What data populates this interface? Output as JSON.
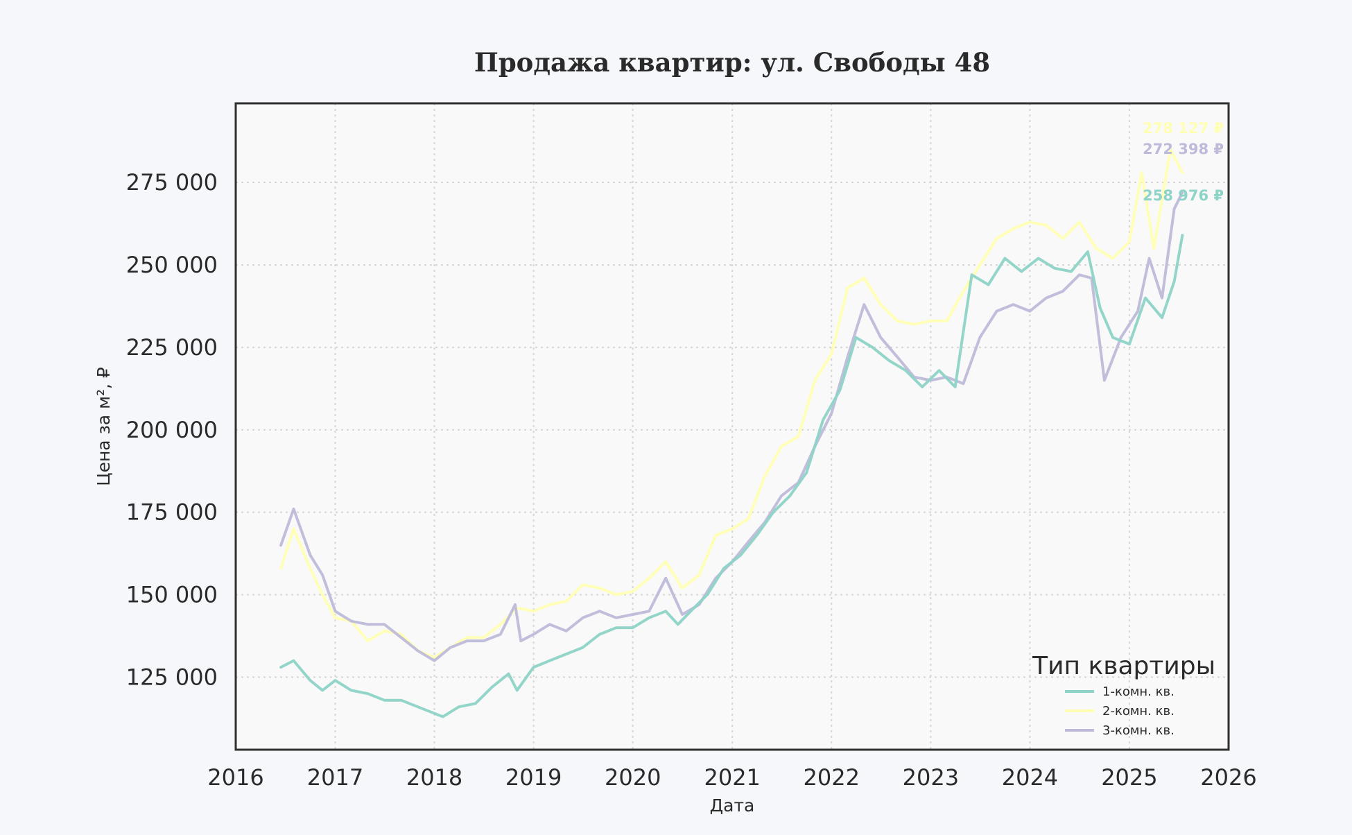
{
  "chart_data": {
    "type": "line",
    "title": "Продажа квартир: ул. Свободы 48",
    "xlabel": "Дата",
    "ylabel": "Цена за м², ₽",
    "xlim": [
      "2016-01-01",
      "2026-01-01"
    ],
    "ylim": [
      103000,
      299000
    ],
    "xticks": [
      "2016",
      "2017",
      "2018",
      "2019",
      "2020",
      "2021",
      "2022",
      "2023",
      "2024",
      "2025",
      "2026"
    ],
    "yticks": [
      {
        "value": 125000,
        "label": "125 000"
      },
      {
        "value": 150000,
        "label": "150 000"
      },
      {
        "value": 175000,
        "label": "175 000"
      },
      {
        "value": 200000,
        "label": "200 000"
      },
      {
        "value": 225000,
        "label": "225 000"
      },
      {
        "value": 250000,
        "label": "250 000"
      },
      {
        "value": 275000,
        "label": "275 000"
      }
    ],
    "grid": true,
    "legend": {
      "title": "Тип квартиры",
      "position": "bottom-right"
    },
    "series": [
      {
        "name": "1-комн. кв.",
        "color": "#8ed3c7",
        "end_label": "258 976 ₽",
        "points": [
          [
            "2016-06-15",
            128000
          ],
          [
            "2016-08-01",
            130000
          ],
          [
            "2016-10-01",
            124000
          ],
          [
            "2016-11-15",
            121000
          ],
          [
            "2017-01-01",
            124000
          ],
          [
            "2017-03-01",
            121000
          ],
          [
            "2017-05-01",
            120000
          ],
          [
            "2017-07-01",
            118000
          ],
          [
            "2017-09-01",
            118000
          ],
          [
            "2017-11-01",
            116000
          ],
          [
            "2018-01-01",
            114000
          ],
          [
            "2018-02-01",
            113000
          ],
          [
            "2018-04-01",
            116000
          ],
          [
            "2018-06-01",
            117000
          ],
          [
            "2018-08-01",
            122000
          ],
          [
            "2018-10-01",
            126000
          ],
          [
            "2018-11-01",
            121000
          ],
          [
            "2019-01-01",
            128000
          ],
          [
            "2019-03-01",
            130000
          ],
          [
            "2019-05-01",
            132000
          ],
          [
            "2019-07-01",
            134000
          ],
          [
            "2019-09-01",
            138000
          ],
          [
            "2019-11-01",
            140000
          ],
          [
            "2020-01-01",
            140000
          ],
          [
            "2020-03-01",
            143000
          ],
          [
            "2020-05-01",
            145000
          ],
          [
            "2020-06-15",
            141000
          ],
          [
            "2020-08-01",
            145000
          ],
          [
            "2020-10-01",
            150000
          ],
          [
            "2020-12-01",
            158000
          ],
          [
            "2021-02-01",
            162000
          ],
          [
            "2021-04-01",
            168000
          ],
          [
            "2021-06-01",
            175000
          ],
          [
            "2021-08-01",
            180000
          ],
          [
            "2021-10-01",
            187000
          ],
          [
            "2021-12-01",
            203000
          ],
          [
            "2022-02-01",
            212000
          ],
          [
            "2022-04-01",
            228000
          ],
          [
            "2022-06-01",
            225000
          ],
          [
            "2022-08-01",
            221000
          ],
          [
            "2022-10-01",
            218000
          ],
          [
            "2022-12-01",
            213000
          ],
          [
            "2023-02-01",
            218000
          ],
          [
            "2023-04-01",
            213000
          ],
          [
            "2023-06-01",
            247000
          ],
          [
            "2023-08-01",
            244000
          ],
          [
            "2023-10-01",
            252000
          ],
          [
            "2023-12-01",
            248000
          ],
          [
            "2024-02-01",
            252000
          ],
          [
            "2024-04-01",
            249000
          ],
          [
            "2024-06-01",
            248000
          ],
          [
            "2024-08-01",
            254000
          ],
          [
            "2024-09-15",
            237000
          ],
          [
            "2024-11-01",
            228000
          ],
          [
            "2025-01-01",
            226000
          ],
          [
            "2025-03-01",
            240000
          ],
          [
            "2025-05-01",
            234000
          ],
          [
            "2025-06-15",
            245000
          ],
          [
            "2025-07-15",
            259000
          ]
        ]
      },
      {
        "name": "2-комн. кв.",
        "color": "#ffffb3",
        "end_label": "278 127 ₽",
        "points": [
          [
            "2016-06-15",
            158000
          ],
          [
            "2016-08-01",
            170000
          ],
          [
            "2016-10-01",
            158000
          ],
          [
            "2016-11-15",
            150000
          ],
          [
            "2017-01-01",
            143000
          ],
          [
            "2017-03-01",
            142000
          ],
          [
            "2017-05-01",
            136000
          ],
          [
            "2017-07-01",
            139000
          ],
          [
            "2017-09-01",
            138000
          ],
          [
            "2017-11-01",
            133000
          ],
          [
            "2018-01-01",
            131000
          ],
          [
            "2018-03-01",
            134000
          ],
          [
            "2018-05-01",
            137000
          ],
          [
            "2018-07-01",
            137000
          ],
          [
            "2018-09-01",
            141000
          ],
          [
            "2018-11-01",
            146000
          ],
          [
            "2019-01-01",
            145000
          ],
          [
            "2019-03-01",
            147000
          ],
          [
            "2019-05-01",
            148000
          ],
          [
            "2019-07-01",
            153000
          ],
          [
            "2019-09-01",
            152000
          ],
          [
            "2019-11-01",
            150000
          ],
          [
            "2020-01-01",
            151000
          ],
          [
            "2020-03-01",
            155000
          ],
          [
            "2020-05-01",
            160000
          ],
          [
            "2020-07-01",
            152000
          ],
          [
            "2020-09-01",
            156000
          ],
          [
            "2020-11-01",
            168000
          ],
          [
            "2021-01-01",
            170000
          ],
          [
            "2021-03-01",
            173000
          ],
          [
            "2021-05-01",
            186000
          ],
          [
            "2021-07-01",
            195000
          ],
          [
            "2021-09-01",
            198000
          ],
          [
            "2021-11-01",
            215000
          ],
          [
            "2022-01-01",
            223000
          ],
          [
            "2022-03-01",
            243000
          ],
          [
            "2022-05-01",
            246000
          ],
          [
            "2022-07-01",
            238000
          ],
          [
            "2022-09-01",
            233000
          ],
          [
            "2022-11-01",
            232000
          ],
          [
            "2023-01-01",
            233000
          ],
          [
            "2023-03-01",
            233000
          ],
          [
            "2023-05-01",
            242000
          ],
          [
            "2023-07-01",
            250000
          ],
          [
            "2023-09-01",
            258000
          ],
          [
            "2023-11-01",
            261000
          ],
          [
            "2024-01-01",
            263000
          ],
          [
            "2024-03-01",
            262000
          ],
          [
            "2024-05-01",
            258000
          ],
          [
            "2024-07-01",
            263000
          ],
          [
            "2024-09-01",
            255000
          ],
          [
            "2024-11-01",
            252000
          ],
          [
            "2025-01-01",
            257000
          ],
          [
            "2025-02-15",
            278000
          ],
          [
            "2025-04-01",
            255000
          ],
          [
            "2025-06-01",
            285000
          ],
          [
            "2025-07-15",
            278000
          ]
        ]
      },
      {
        "name": "3-комн. кв.",
        "color": "#bebada",
        "end_label": "272 398 ₽",
        "points": [
          [
            "2016-06-15",
            165000
          ],
          [
            "2016-08-01",
            176000
          ],
          [
            "2016-10-01",
            162000
          ],
          [
            "2016-11-15",
            156000
          ],
          [
            "2017-01-01",
            145000
          ],
          [
            "2017-03-01",
            142000
          ],
          [
            "2017-05-01",
            141000
          ],
          [
            "2017-07-01",
            141000
          ],
          [
            "2017-09-01",
            137000
          ],
          [
            "2017-11-01",
            133000
          ],
          [
            "2018-01-01",
            130000
          ],
          [
            "2018-03-01",
            134000
          ],
          [
            "2018-05-01",
            136000
          ],
          [
            "2018-07-01",
            136000
          ],
          [
            "2018-09-01",
            138000
          ],
          [
            "2018-10-25",
            147000
          ],
          [
            "2018-11-15",
            136000
          ],
          [
            "2019-01-01",
            138000
          ],
          [
            "2019-03-01",
            141000
          ],
          [
            "2019-05-01",
            139000
          ],
          [
            "2019-07-01",
            143000
          ],
          [
            "2019-09-01",
            145000
          ],
          [
            "2019-11-01",
            143000
          ],
          [
            "2020-01-01",
            144000
          ],
          [
            "2020-03-01",
            145000
          ],
          [
            "2020-05-01",
            155000
          ],
          [
            "2020-07-01",
            144000
          ],
          [
            "2020-09-01",
            147000
          ],
          [
            "2020-11-01",
            155000
          ],
          [
            "2021-01-01",
            160000
          ],
          [
            "2021-03-01",
            166000
          ],
          [
            "2021-05-01",
            172000
          ],
          [
            "2021-07-01",
            180000
          ],
          [
            "2021-09-01",
            184000
          ],
          [
            "2021-11-01",
            195000
          ],
          [
            "2022-01-01",
            205000
          ],
          [
            "2022-03-01",
            222000
          ],
          [
            "2022-05-01",
            238000
          ],
          [
            "2022-07-01",
            228000
          ],
          [
            "2022-09-01",
            222000
          ],
          [
            "2022-11-01",
            216000
          ],
          [
            "2023-01-01",
            215000
          ],
          [
            "2023-03-01",
            216000
          ],
          [
            "2023-05-01",
            214000
          ],
          [
            "2023-07-01",
            228000
          ],
          [
            "2023-09-01",
            236000
          ],
          [
            "2023-11-01",
            238000
          ],
          [
            "2024-01-01",
            236000
          ],
          [
            "2024-03-01",
            240000
          ],
          [
            "2024-05-01",
            242000
          ],
          [
            "2024-07-01",
            247000
          ],
          [
            "2024-08-15",
            246000
          ],
          [
            "2024-10-01",
            215000
          ],
          [
            "2024-12-01",
            228000
          ],
          [
            "2025-02-01",
            236000
          ],
          [
            "2025-03-15",
            252000
          ],
          [
            "2025-05-01",
            240000
          ],
          [
            "2025-06-15",
            267000
          ],
          [
            "2025-07-15",
            272000
          ]
        ]
      }
    ]
  }
}
